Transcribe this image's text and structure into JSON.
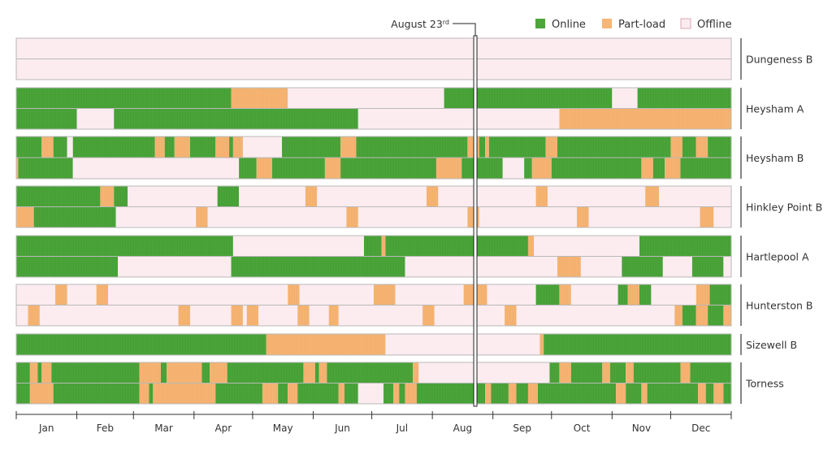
{
  "chart_data": {
    "type": "timeline",
    "title": "",
    "xlabel": "",
    "ylabel": "",
    "months": [
      "Jan",
      "Feb",
      "Mar",
      "Apr",
      "May",
      "Jun",
      "Jul",
      "Aug",
      "Sep",
      "Oct",
      "Nov",
      "Dec"
    ],
    "marker": {
      "label": "August 23",
      "suffix": "rd",
      "day": 235
    },
    "legend": [
      {
        "key": "on",
        "label": "Online",
        "color": "#4ca63a"
      },
      {
        "key": "pl",
        "label": "Part-load",
        "color": "#f6b675"
      },
      {
        "key": "off",
        "label": "Offline",
        "color": "#fcecef"
      }
    ],
    "stations": [
      {
        "name": "Dungeness B",
        "units": [
          [
            [
              "off",
              0,
              366
            ]
          ],
          [
            [
              "off",
              0,
              366
            ]
          ]
        ]
      },
      {
        "name": "Heysham A",
        "units": [
          [
            [
              "on",
              0,
              110
            ],
            [
              "pl",
              110,
              139
            ],
            [
              "off",
              139,
              219
            ],
            [
              "on",
              219,
              305
            ],
            [
              "off",
              305,
              318
            ],
            [
              "on",
              318,
              366
            ]
          ],
          [
            [
              "on",
              0,
              31
            ],
            [
              "off",
              31,
              50
            ],
            [
              "on",
              50,
              175
            ],
            [
              "off",
              175,
              278
            ],
            [
              "pl",
              278,
              366
            ]
          ]
        ]
      },
      {
        "name": "Heysham B",
        "units": [
          [
            [
              "on",
              0,
              13
            ],
            [
              "pl",
              13,
              19
            ],
            [
              "on",
              19,
              26
            ],
            [
              "off",
              26,
              29
            ],
            [
              "on",
              29,
              71
            ],
            [
              "pl",
              71,
              76
            ],
            [
              "on",
              76,
              81
            ],
            [
              "pl",
              81,
              89
            ],
            [
              "on",
              89,
              102
            ],
            [
              "pl",
              102,
              109
            ],
            [
              "on",
              109,
              111
            ],
            [
              "pl",
              111,
              116
            ],
            [
              "off",
              116,
              136
            ],
            [
              "on",
              136,
              166
            ],
            [
              "pl",
              166,
              174
            ],
            [
              "on",
              174,
              231
            ],
            [
              "pl",
              231,
              237
            ],
            [
              "on",
              237,
              240
            ],
            [
              "pl",
              240,
              242
            ],
            [
              "on",
              242,
              271
            ],
            [
              "pl",
              271,
              277
            ],
            [
              "on",
              277,
              335
            ],
            [
              "pl",
              335,
              341
            ],
            [
              "on",
              341,
              348
            ],
            [
              "pl",
              348,
              354
            ],
            [
              "on",
              354,
              366
            ]
          ],
          [
            [
              "pl",
              0,
              1
            ],
            [
              "on",
              1,
              29
            ],
            [
              "off",
              29,
              114
            ],
            [
              "on",
              114,
              123
            ],
            [
              "pl",
              123,
              131
            ],
            [
              "on",
              131,
              158
            ],
            [
              "pl",
              158,
              166
            ],
            [
              "on",
              166,
              215
            ],
            [
              "pl",
              215,
              228
            ],
            [
              "on",
              228,
              249
            ],
            [
              "off",
              249,
              260
            ],
            [
              "on",
              260,
              264
            ],
            [
              "pl",
              264,
              274
            ],
            [
              "on",
              274,
              320
            ],
            [
              "pl",
              320,
              326
            ],
            [
              "on",
              326,
              332
            ],
            [
              "pl",
              332,
              340
            ],
            [
              "on",
              340,
              366
            ]
          ]
        ]
      },
      {
        "name": "Hinkley Point B",
        "units": [
          [
            [
              "on",
              0,
              43
            ],
            [
              "pl",
              43,
              50
            ],
            [
              "on",
              50,
              57
            ],
            [
              "off",
              57,
              103
            ],
            [
              "on",
              103,
              114
            ],
            [
              "off",
              114,
              148
            ],
            [
              "pl",
              148,
              154
            ],
            [
              "off",
              154,
              210
            ],
            [
              "pl",
              210,
              216
            ],
            [
              "off",
              216,
              266
            ],
            [
              "pl",
              266,
              272
            ],
            [
              "off",
              272,
              322
            ],
            [
              "pl",
              322,
              329
            ],
            [
              "off",
              329,
              366
            ]
          ],
          [
            [
              "pl",
              0,
              9
            ],
            [
              "on",
              9,
              51
            ],
            [
              "off",
              51,
              92
            ],
            [
              "pl",
              92,
              98
            ],
            [
              "off",
              98,
              169
            ],
            [
              "pl",
              169,
              175
            ],
            [
              "off",
              175,
              231
            ],
            [
              "pl",
              231,
              237
            ],
            [
              "off",
              237,
              287
            ],
            [
              "pl",
              287,
              293
            ],
            [
              "off",
              293,
              350
            ],
            [
              "pl",
              350,
              357
            ],
            [
              "off",
              357,
              366
            ]
          ]
        ]
      },
      {
        "name": "Hartlepool A",
        "units": [
          [
            [
              "on",
              0,
              111
            ],
            [
              "off",
              111,
              178
            ],
            [
              "on",
              178,
              187
            ],
            [
              "pl",
              187,
              189
            ],
            [
              "on",
              189,
              262
            ],
            [
              "pl",
              262,
              265
            ],
            [
              "off",
              265,
              319
            ],
            [
              "on",
              319,
              366
            ]
          ],
          [
            [
              "on",
              0,
              52
            ],
            [
              "off",
              52,
              110
            ],
            [
              "on",
              110,
              199
            ],
            [
              "off",
              199,
              277
            ],
            [
              "pl",
              277,
              289
            ],
            [
              "off",
              289,
              310
            ],
            [
              "on",
              310,
              331
            ],
            [
              "off",
              331,
              346
            ],
            [
              "on",
              346,
              362
            ],
            [
              "off",
              362,
              366
            ]
          ]
        ]
      },
      {
        "name": "Hunterston B",
        "units": [
          [
            [
              "off",
              0,
              20
            ],
            [
              "pl",
              20,
              26
            ],
            [
              "off",
              26,
              41
            ],
            [
              "pl",
              41,
              47
            ],
            [
              "off",
              47,
              139
            ],
            [
              "pl",
              139,
              145
            ],
            [
              "off",
              145,
              183
            ],
            [
              "pl",
              183,
              194
            ],
            [
              "off",
              194,
              229
            ],
            [
              "pl",
              229,
              241
            ],
            [
              "off",
              241,
              266
            ],
            [
              "on",
              266,
              278
            ],
            [
              "pl",
              278,
              284
            ],
            [
              "off",
              284,
              308
            ],
            [
              "on",
              308,
              313
            ],
            [
              "pl",
              313,
              319
            ],
            [
              "on",
              319,
              325
            ],
            [
              "off",
              325,
              348
            ],
            [
              "pl",
              348,
              355
            ],
            [
              "on",
              355,
              366
            ]
          ],
          [
            [
              "off",
              0,
              6
            ],
            [
              "pl",
              6,
              12
            ],
            [
              "off",
              12,
              83
            ],
            [
              "pl",
              83,
              89
            ],
            [
              "off",
              89,
              110
            ],
            [
              "pl",
              110,
              116
            ],
            [
              "off",
              116,
              118
            ],
            [
              "pl",
              118,
              124
            ],
            [
              "off",
              124,
              144
            ],
            [
              "pl",
              144,
              150
            ],
            [
              "off",
              150,
              160
            ],
            [
              "pl",
              160,
              165
            ],
            [
              "off",
              165,
              208
            ],
            [
              "pl",
              208,
              214
            ],
            [
              "off",
              214,
              250
            ],
            [
              "pl",
              250,
              256
            ],
            [
              "off",
              256,
              337
            ],
            [
              "pl",
              337,
              341
            ],
            [
              "on",
              341,
              348
            ],
            [
              "pl",
              348,
              354
            ],
            [
              "on",
              354,
              362
            ],
            [
              "pl",
              362,
              366
            ]
          ]
        ]
      },
      {
        "name": "Sizewell B",
        "units": [
          [
            [
              "on",
              0,
              128
            ],
            [
              "pl",
              128,
              189
            ],
            [
              "off",
              189,
              268
            ],
            [
              "pl",
              268,
              270
            ],
            [
              "on",
              270,
              366
            ]
          ]
        ]
      },
      {
        "name": "Torness",
        "units": [
          [
            [
              "on",
              0,
              7
            ],
            [
              "pl",
              7,
              11
            ],
            [
              "on",
              11,
              13
            ],
            [
              "pl",
              13,
              18
            ],
            [
              "on",
              18,
              63
            ],
            [
              "pl",
              63,
              74
            ],
            [
              "on",
              74,
              77
            ],
            [
              "pl",
              77,
              95
            ],
            [
              "on",
              95,
              99
            ],
            [
              "pl",
              99,
              108
            ],
            [
              "on",
              108,
              147
            ],
            [
              "pl",
              147,
              153
            ],
            [
              "on",
              153,
              155
            ],
            [
              "pl",
              155,
              159
            ],
            [
              "on",
              159,
              203
            ],
            [
              "pl",
              203,
              206
            ],
            [
              "off",
              206,
              273
            ],
            [
              "on",
              273,
              278
            ],
            [
              "pl",
              278,
              284
            ],
            [
              "on",
              284,
              300
            ],
            [
              "pl",
              300,
              304
            ],
            [
              "on",
              304,
              312
            ],
            [
              "pl",
              312,
              316
            ],
            [
              "on",
              316,
              340
            ],
            [
              "pl",
              340,
              345
            ],
            [
              "on",
              345,
              366
            ]
          ],
          [
            [
              "on",
              0,
              7
            ],
            [
              "pl",
              7,
              19
            ],
            [
              "on",
              19,
              63
            ],
            [
              "pl",
              63,
              68
            ],
            [
              "on",
              68,
              70
            ],
            [
              "pl",
              70,
              102
            ],
            [
              "on",
              102,
              126
            ],
            [
              "pl",
              126,
              134
            ],
            [
              "on",
              134,
              139
            ],
            [
              "pl",
              139,
              144
            ],
            [
              "on",
              144,
              165
            ],
            [
              "pl",
              165,
              168
            ],
            [
              "on",
              168,
              175
            ],
            [
              "off",
              175,
              188
            ],
            [
              "on",
              188,
              193
            ],
            [
              "pl",
              193,
              196
            ],
            [
              "on",
              196,
              199
            ],
            [
              "pl",
              199,
              205
            ],
            [
              "on",
              205,
              240
            ],
            [
              "pl",
              240,
              243
            ],
            [
              "on",
              243,
              252
            ],
            [
              "pl",
              252,
              256
            ],
            [
              "on",
              256,
              262
            ],
            [
              "pl",
              262,
              267
            ],
            [
              "on",
              267,
              307
            ],
            [
              "pl",
              307,
              312
            ],
            [
              "on",
              312,
              320
            ],
            [
              "pl",
              320,
              323
            ],
            [
              "on",
              323,
              349
            ],
            [
              "pl",
              349,
              353
            ],
            [
              "on",
              353,
              357
            ],
            [
              "pl",
              357,
              362
            ],
            [
              "on",
              362,
              366
            ]
          ]
        ]
      }
    ]
  }
}
